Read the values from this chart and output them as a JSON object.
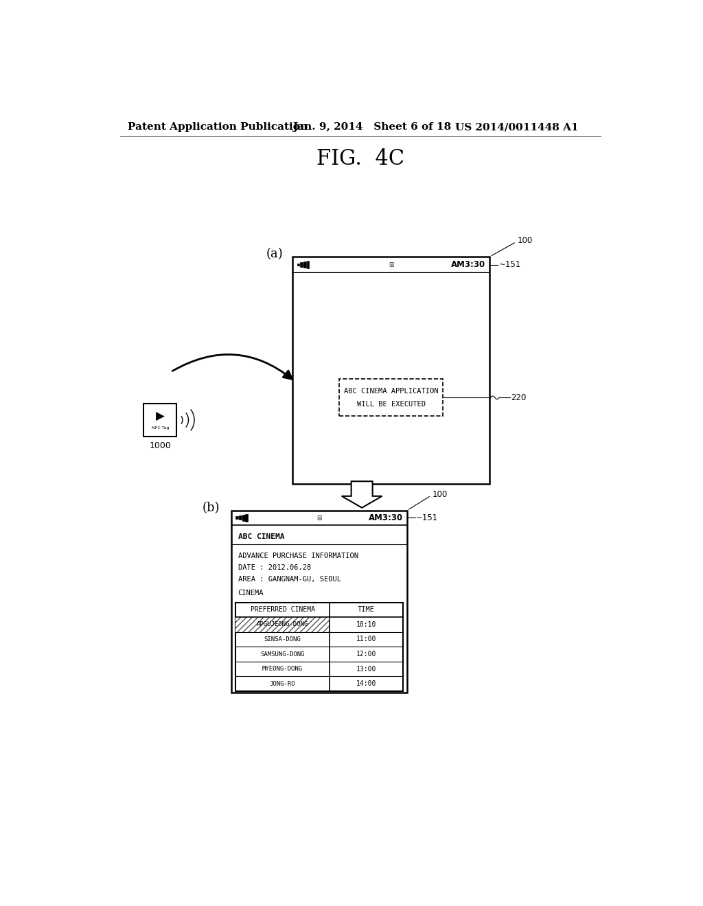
{
  "header_left": "Patent Application Publication",
  "header_mid": "Jan. 9, 2014   Sheet 6 of 18",
  "header_right": "US 2014/0011448 A1",
  "fig_title": "FIG.  4C",
  "label_a": "(a)",
  "label_b": "(b)",
  "label_100_a": "100",
  "label_151_a": "151",
  "label_220": "220",
  "label_100_b": "100",
  "label_151_b": "151",
  "label_1000": "1000",
  "status_bar_text": "AM3:30",
  "notification_text1": "ABC CINEMA APPLICATION",
  "notification_text2": "WILL BE EXECUTED",
  "cinema_title": "ABC CINEMA",
  "info_line1": "ADVANCE PURCHASE INFORMATION",
  "info_line2": "DATE : 2012.06.28",
  "info_line3": "AREA : GANGNAM-GU, SEOUL",
  "cinema_label": "CINEMA",
  "table_header_col1": "PREFERRED CINEMA",
  "table_header_col2": "TIME",
  "table_rows": [
    [
      "APGUJEONG-DONG",
      "10:10"
    ],
    [
      "SINSA-DONG",
      "11:00"
    ],
    [
      "SAMSUNG-DONG",
      "12:00"
    ],
    [
      "MYEONG-DONG",
      "13:00"
    ],
    [
      "JONG-RO",
      "14:00"
    ]
  ],
  "highlighted_row": 0,
  "background_color": "#ffffff"
}
